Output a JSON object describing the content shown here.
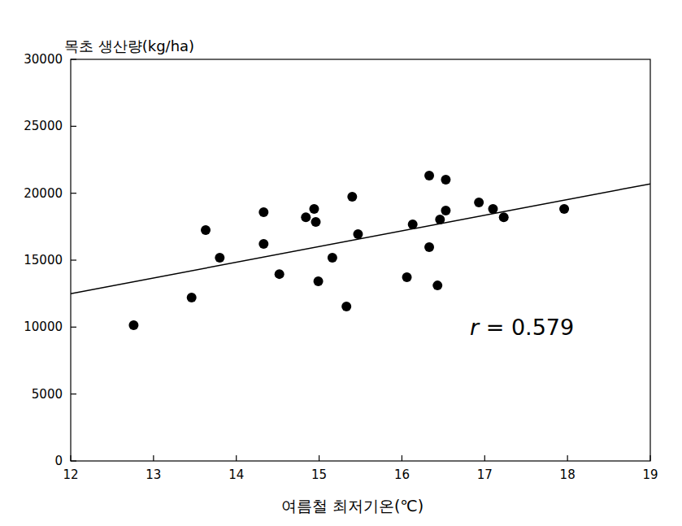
{
  "chart_data": {
    "type": "scatter",
    "y_label": "목초 생산량(kg/ha)",
    "x_label": "여름철 최저기온(℃)",
    "annotation": "r = 0.579",
    "series": [
      {
        "type": "scatter",
        "color": "#000000",
        "marker": "circle",
        "x": [
          12.76,
          13.46,
          13.63,
          13.8,
          14.33,
          14.33,
          14.52,
          14.84,
          14.94,
          14.96,
          14.99,
          15.16,
          15.33,
          15.4,
          15.47,
          16.06,
          16.13,
          16.33,
          16.33,
          16.43,
          16.46,
          16.53,
          16.53,
          16.93,
          17.1,
          17.23,
          17.96
        ],
        "values": [
          10140,
          12200,
          17240,
          15180,
          18580,
          16210,
          13960,
          18210,
          18820,
          17850,
          13420,
          15180,
          11540,
          19730,
          16940,
          13720,
          17670,
          21310,
          15970,
          13110,
          18030,
          21010,
          18700,
          19310,
          18820,
          18210,
          18820
        ]
      },
      {
        "type": "line",
        "color": "#000000",
        "line_style": "solid",
        "x": [
          12,
          19
        ],
        "values": [
          12500,
          20700
        ]
      }
    ],
    "xlim": [
      12,
      19
    ],
    "xticks": [
      12,
      13,
      14,
      15,
      16,
      17,
      18,
      19
    ],
    "ylim": [
      0,
      30000
    ],
    "yticks": [
      0,
      5000,
      10000,
      15000,
      20000,
      25000,
      30000
    ],
    "grid": false
  }
}
